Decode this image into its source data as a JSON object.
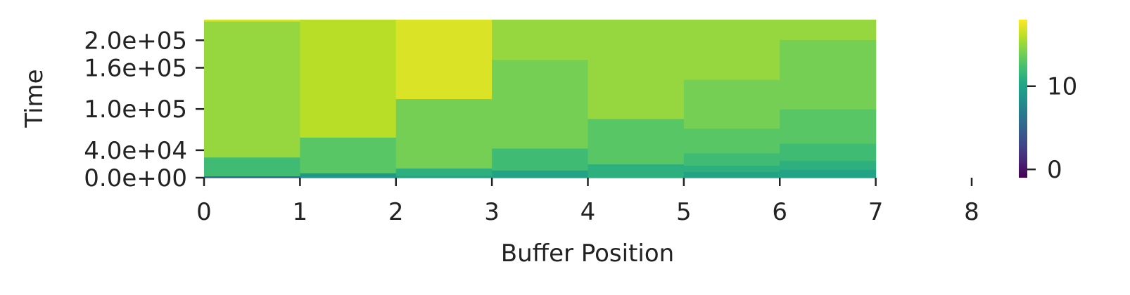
{
  "chart_data": {
    "type": "heatmap",
    "title": "",
    "xlabel": "Buffer Position",
    "ylabel": "Time",
    "x_ticks": [
      {
        "value": 0,
        "label": "0"
      },
      {
        "value": 1,
        "label": "1"
      },
      {
        "value": 2,
        "label": "2"
      },
      {
        "value": 3,
        "label": "3"
      },
      {
        "value": 4,
        "label": "4"
      },
      {
        "value": 5,
        "label": "5"
      },
      {
        "value": 6,
        "label": "6"
      },
      {
        "value": 7,
        "label": "7"
      },
      {
        "value": 8,
        "label": "8"
      }
    ],
    "y_ticks": [
      {
        "value": 0,
        "label": "0.0e+00"
      },
      {
        "value": 40000,
        "label": "4.0e+04"
      },
      {
        "value": 100000,
        "label": "1.0e+05"
      },
      {
        "value": 160000,
        "label": "1.6e+05"
      },
      {
        "value": 200000,
        "label": "2.0e+05"
      }
    ],
    "xlim": [
      0,
      8
    ],
    "ylim": [
      0,
      230000
    ],
    "grid": false,
    "colormap": "viridis",
    "colorbar": {
      "range": [
        -1,
        18
      ],
      "ticks": [
        {
          "value": 0,
          "label": "0"
        },
        {
          "value": 10,
          "label": "10"
        }
      ]
    },
    "cells": [
      {
        "x0": 0,
        "x1": 1,
        "y0": 0,
        "y1": 2500,
        "value": 5
      },
      {
        "x0": 0,
        "x1": 1,
        "y0": 2500,
        "y1": 30000,
        "value": 12
      },
      {
        "x0": 0,
        "x1": 1,
        "y0": 30000,
        "y1": 228000,
        "value": 15
      },
      {
        "x0": 0,
        "x1": 1,
        "y0": 228000,
        "y1": 230000,
        "value": 17
      },
      {
        "x0": 1,
        "x1": 2,
        "y0": 0,
        "y1": 7000,
        "value": 9
      },
      {
        "x0": 1,
        "x1": 2,
        "y0": 7000,
        "y1": 59000,
        "value": 13
      },
      {
        "x0": 1,
        "x1": 2,
        "y0": 59000,
        "y1": 230000,
        "value": 16
      },
      {
        "x0": 2,
        "x1": 3,
        "y0": 0,
        "y1": 3000,
        "value": 10
      },
      {
        "x0": 2,
        "x1": 3,
        "y0": 3000,
        "y1": 14000,
        "value": 11
      },
      {
        "x0": 2,
        "x1": 3,
        "y0": 14000,
        "y1": 115000,
        "value": 14
      },
      {
        "x0": 2,
        "x1": 3,
        "y0": 115000,
        "y1": 230000,
        "value": 17
      },
      {
        "x0": 3,
        "x1": 4,
        "y0": 0,
        "y1": 11000,
        "value": 10
      },
      {
        "x0": 3,
        "x1": 4,
        "y0": 11000,
        "y1": 43000,
        "value": 12
      },
      {
        "x0": 3,
        "x1": 4,
        "y0": 43000,
        "y1": 172000,
        "value": 14
      },
      {
        "x0": 3,
        "x1": 4,
        "y0": 172000,
        "y1": 230000,
        "value": 15
      },
      {
        "x0": 4,
        "x1": 5,
        "y0": 0,
        "y1": 20000,
        "value": 11
      },
      {
        "x0": 4,
        "x1": 5,
        "y0": 20000,
        "y1": 86000,
        "value": 13
      },
      {
        "x0": 4,
        "x1": 5,
        "y0": 86000,
        "y1": 230000,
        "value": 15
      },
      {
        "x0": 5,
        "x1": 6,
        "y0": 0,
        "y1": 9000,
        "value": 10
      },
      {
        "x0": 5,
        "x1": 6,
        "y0": 9000,
        "y1": 18000,
        "value": 11
      },
      {
        "x0": 5,
        "x1": 6,
        "y0": 18000,
        "y1": 36000,
        "value": 12
      },
      {
        "x0": 5,
        "x1": 6,
        "y0": 36000,
        "y1": 72000,
        "value": 13
      },
      {
        "x0": 5,
        "x1": 6,
        "y0": 72000,
        "y1": 143000,
        "value": 14
      },
      {
        "x0": 5,
        "x1": 6,
        "y0": 143000,
        "y1": 230000,
        "value": 15
      },
      {
        "x0": 6,
        "x1": 7,
        "y0": 0,
        "y1": 12000,
        "value": 10
      },
      {
        "x0": 6,
        "x1": 7,
        "y0": 12000,
        "y1": 25000,
        "value": 11
      },
      {
        "x0": 6,
        "x1": 7,
        "y0": 25000,
        "y1": 50000,
        "value": 12
      },
      {
        "x0": 6,
        "x1": 7,
        "y0": 50000,
        "y1": 100000,
        "value": 13
      },
      {
        "x0": 6,
        "x1": 7,
        "y0": 100000,
        "y1": 201000,
        "value": 14
      },
      {
        "x0": 6,
        "x1": 7,
        "y0": 201000,
        "y1": 230000,
        "value": 15
      }
    ]
  }
}
